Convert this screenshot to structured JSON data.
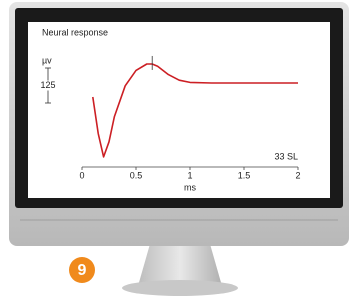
{
  "chart_data": {
    "type": "line",
    "title": "Neural response",
    "y_unit": "µv",
    "scale_bar": 125,
    "annotation": "33 SL",
    "x_label": "ms",
    "x": [
      0.1,
      0.15,
      0.2,
      0.25,
      0.3,
      0.4,
      0.5,
      0.6,
      0.65,
      0.7,
      0.8,
      0.9,
      1.0,
      1.2,
      1.5,
      2.0
    ],
    "values": [
      250,
      120,
      36,
      90,
      180,
      290,
      345,
      368,
      368,
      360,
      330,
      310,
      302,
      300,
      300,
      300
    ],
    "color": "#cc1f24",
    "marker_x": 0.65,
    "xlim": [
      0,
      2
    ],
    "xticks": [
      0,
      0.5,
      1,
      1.5,
      2
    ],
    "ylim": [
      0,
      450
    ]
  },
  "badge": "9"
}
